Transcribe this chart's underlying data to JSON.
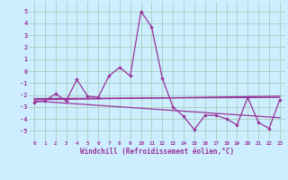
{
  "xlabel": "Windchill (Refroidissement éolien,°C)",
  "background_color": "#cceeff",
  "grid_color": "#aaccbb",
  "line_color": "#993399",
  "xlim": [
    -0.5,
    23.5
  ],
  "ylim": [
    -5.8,
    5.8
  ],
  "yticks": [
    -5,
    -4,
    -3,
    -2,
    -1,
    0,
    1,
    2,
    3,
    4,
    5
  ],
  "xticks": [
    0,
    1,
    2,
    3,
    4,
    5,
    6,
    7,
    8,
    9,
    10,
    11,
    12,
    13,
    14,
    15,
    16,
    17,
    18,
    19,
    20,
    21,
    22,
    23
  ],
  "series": [
    [
      0,
      -2.6
    ],
    [
      1,
      -2.5
    ],
    [
      2,
      -1.9
    ],
    [
      3,
      -2.5
    ],
    [
      4,
      -0.7
    ],
    [
      5,
      -2.1
    ],
    [
      6,
      -2.2
    ],
    [
      7,
      -0.4
    ],
    [
      8,
      0.3
    ],
    [
      9,
      -0.4
    ],
    [
      10,
      5.0
    ],
    [
      11,
      3.7
    ],
    [
      12,
      -0.6
    ],
    [
      13,
      -3.0
    ],
    [
      14,
      -3.8
    ],
    [
      15,
      -4.9
    ],
    [
      16,
      -3.7
    ],
    [
      17,
      -3.7
    ],
    [
      18,
      -4.0
    ],
    [
      19,
      -4.5
    ],
    [
      20,
      -2.2
    ],
    [
      21,
      -4.3
    ],
    [
      22,
      -4.8
    ],
    [
      23,
      -2.4
    ]
  ],
  "regression_lines": [
    {
      "x": [
        0,
        23
      ],
      "y": [
        -2.4,
        -2.1
      ]
    },
    {
      "x": [
        0,
        23
      ],
      "y": [
        -2.3,
        -2.2
      ]
    },
    {
      "x": [
        0,
        23
      ],
      "y": [
        -2.5,
        -3.9
      ]
    }
  ]
}
